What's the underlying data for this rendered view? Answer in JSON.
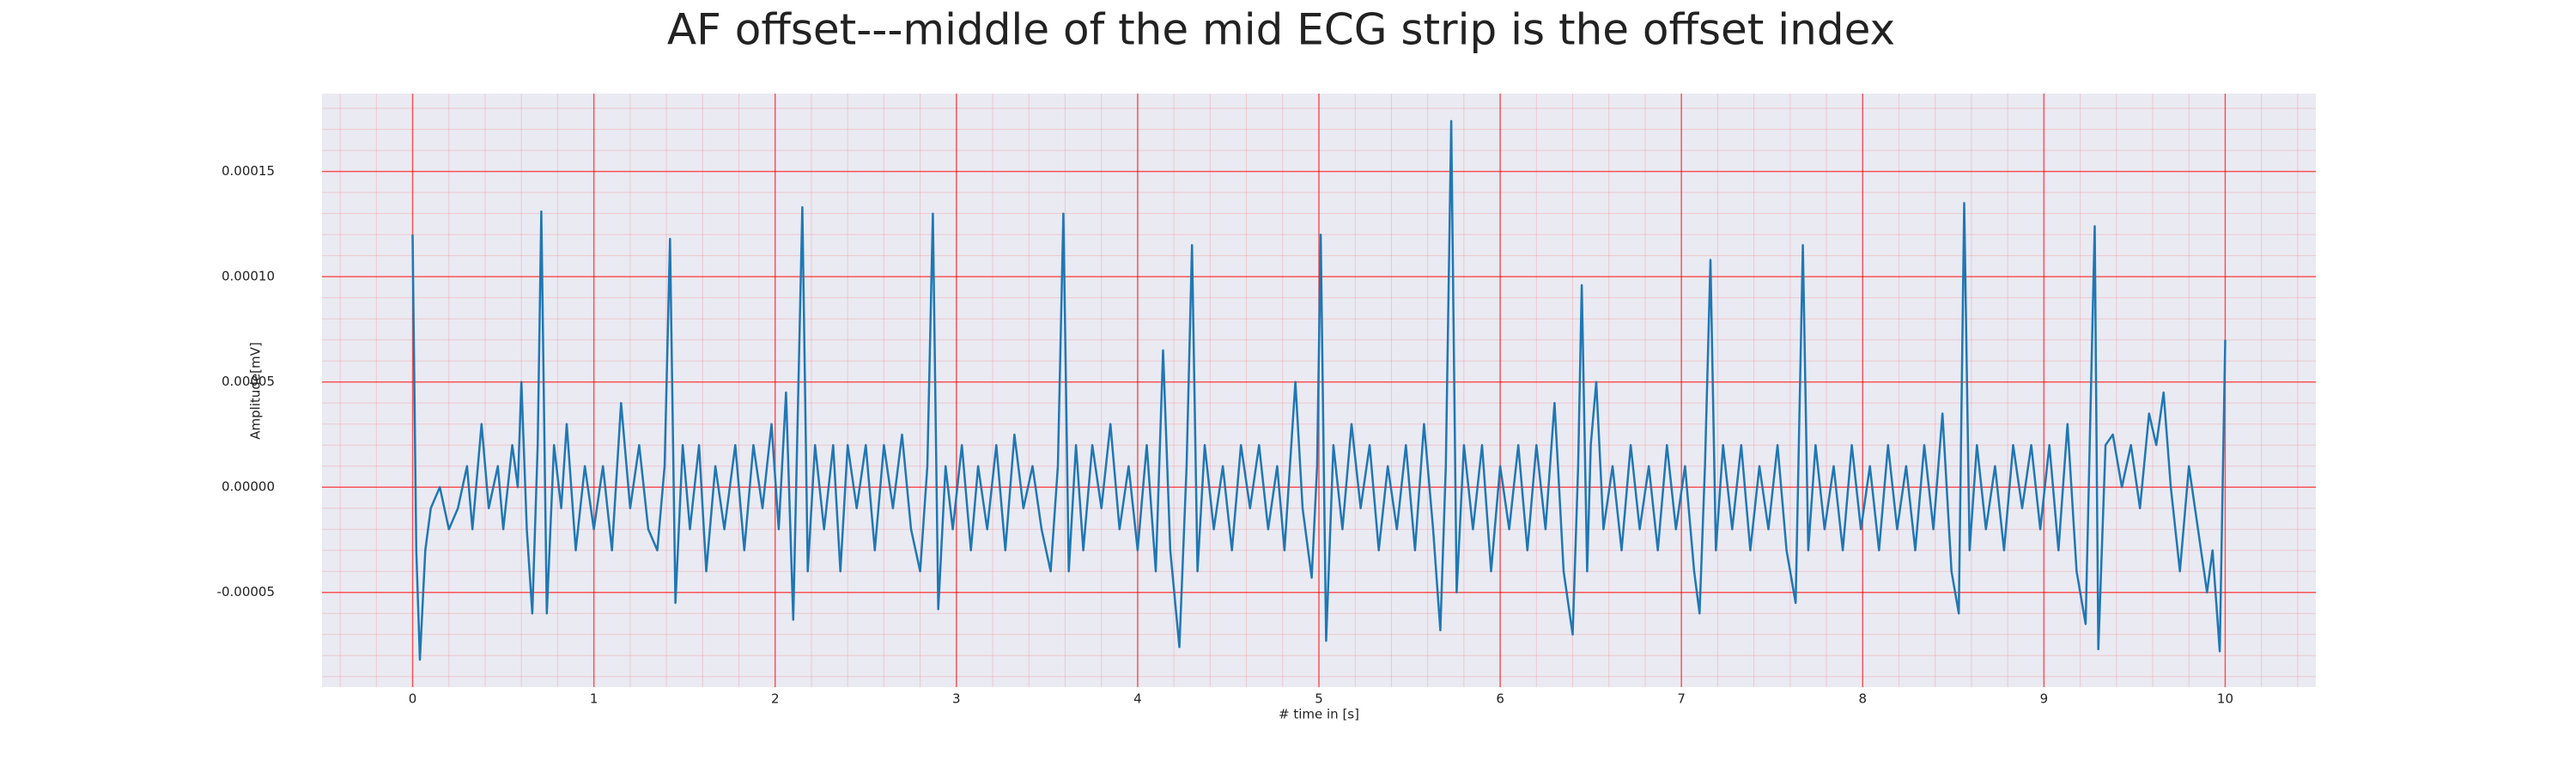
{
  "chart_data": {
    "type": "line",
    "title": "AF offset---middle of the mid ECG strip is the offset index",
    "xlabel": "# time in [s]",
    "ylabel": "Amplitude[mV]",
    "xlim": [
      -0.5,
      10.5
    ],
    "ylim": [
      -9.5e-05,
      0.000187
    ],
    "xticks": [
      0,
      1,
      2,
      3,
      4,
      5,
      6,
      7,
      8,
      9,
      10
    ],
    "yticks": [
      {
        "value": -5e-05,
        "label": "-0.00005"
      },
      {
        "value": 0,
        "label": "0.00000"
      },
      {
        "value": 5e-05,
        "label": "0.00005"
      },
      {
        "value": 0.0001,
        "label": "0.00010"
      },
      {
        "value": 0.00015,
        "label": "0.00015"
      }
    ],
    "grid": true,
    "minor_grid": true,
    "grid_color": "#ff0000",
    "background": "#eaeaf2",
    "series": [
      {
        "color": "#1f77b4",
        "x": [
          0,
          0.02,
          0.04,
          0.07,
          0.1,
          0.15,
          0.2,
          0.25,
          0.3,
          0.33,
          0.38,
          0.42,
          0.47,
          0.5,
          0.55,
          0.58,
          0.6,
          0.63,
          0.66,
          0.69,
          0.71,
          0.74,
          0.78,
          0.82,
          0.85,
          0.9,
          0.95,
          1.0,
          1.05,
          1.1,
          1.15,
          1.2,
          1.25,
          1.3,
          1.35,
          1.39,
          1.42,
          1.45,
          1.49,
          1.53,
          1.58,
          1.62,
          1.67,
          1.72,
          1.78,
          1.83,
          1.88,
          1.93,
          1.98,
          2.02,
          2.06,
          2.1,
          2.15,
          2.18,
          2.22,
          2.27,
          2.32,
          2.36,
          2.4,
          2.45,
          2.5,
          2.55,
          2.6,
          2.65,
          2.7,
          2.75,
          2.8,
          2.84,
          2.87,
          2.9,
          2.94,
          2.98,
          3.03,
          3.08,
          3.12,
          3.17,
          3.22,
          3.27,
          3.32,
          3.37,
          3.42,
          3.47,
          3.52,
          3.56,
          3.59,
          3.62,
          3.66,
          3.7,
          3.75,
          3.8,
          3.85,
          3.9,
          3.95,
          4.0,
          4.05,
          4.1,
          4.14,
          4.18,
          4.23,
          4.27,
          4.3,
          4.33,
          4.37,
          4.42,
          4.47,
          4.52,
          4.57,
          4.62,
          4.67,
          4.72,
          4.77,
          4.81,
          4.87,
          4.91,
          4.96,
          4.99,
          5.01,
          5.04,
          5.08,
          5.13,
          5.18,
          5.23,
          5.28,
          5.33,
          5.38,
          5.43,
          5.48,
          5.53,
          5.58,
          5.63,
          5.67,
          5.7,
          5.73,
          5.76,
          5.8,
          5.85,
          5.9,
          5.95,
          6.0,
          6.05,
          6.1,
          6.15,
          6.2,
          6.25,
          6.3,
          6.35,
          6.4,
          6.43,
          6.45,
          6.48,
          6.5,
          6.53,
          6.57,
          6.62,
          6.67,
          6.72,
          6.77,
          6.82,
          6.87,
          6.92,
          6.97,
          7.02,
          7.07,
          7.1,
          7.13,
          7.16,
          7.19,
          7.23,
          7.28,
          7.33,
          7.38,
          7.43,
          7.48,
          7.53,
          7.58,
          7.63,
          7.67,
          7.7,
          7.74,
          7.79,
          7.84,
          7.89,
          7.94,
          7.99,
          8.04,
          8.09,
          8.14,
          8.19,
          8.24,
          8.29,
          8.34,
          8.39,
          8.44,
          8.49,
          8.53,
          8.56,
          8.59,
          8.63,
          8.68,
          8.73,
          8.78,
          8.83,
          8.88,
          8.93,
          8.98,
          9.03,
          9.08,
          9.13,
          9.18,
          9.23,
          9.25,
          9.28,
          9.3,
          9.34,
          9.38,
          9.43,
          9.48,
          9.53,
          9.58,
          9.62,
          9.66,
          9.7,
          9.75,
          9.8,
          9.85,
          9.9,
          9.93,
          9.97,
          10.0
        ],
        "values": [
          0.00012,
          -3e-05,
          -8.2e-05,
          -3e-05,
          -1e-05,
          0,
          -2e-05,
          -1e-05,
          1e-05,
          -2e-05,
          3e-05,
          -1e-05,
          1e-05,
          -2e-05,
          2e-05,
          0,
          5e-05,
          -2e-05,
          -6e-05,
          2e-05,
          0.000131,
          -6e-05,
          2e-05,
          -1e-05,
          3e-05,
          -3e-05,
          1e-05,
          -2e-05,
          1e-05,
          -3e-05,
          4e-05,
          -1e-05,
          2e-05,
          -2e-05,
          -3e-05,
          1e-05,
          0.000118,
          -5.5e-05,
          2e-05,
          -2e-05,
          2e-05,
          -4e-05,
          1e-05,
          -2e-05,
          2e-05,
          -3e-05,
          2e-05,
          -1e-05,
          3e-05,
          -2e-05,
          4.5e-05,
          -6.3e-05,
          0.000133,
          -4e-05,
          2e-05,
          -2e-05,
          2e-05,
          -4e-05,
          2e-05,
          -1e-05,
          2e-05,
          -3e-05,
          2e-05,
          -1e-05,
          2.5e-05,
          -2e-05,
          -4e-05,
          1e-05,
          0.00013,
          -5.8e-05,
          1e-05,
          -2e-05,
          2e-05,
          -3e-05,
          1e-05,
          -2e-05,
          2e-05,
          -3e-05,
          2.5e-05,
          -1e-05,
          1e-05,
          -2e-05,
          -4e-05,
          1e-05,
          0.00013,
          -4e-05,
          2e-05,
          -3e-05,
          2e-05,
          -1e-05,
          3e-05,
          -2e-05,
          1e-05,
          -3e-05,
          2e-05,
          -4e-05,
          6.5e-05,
          -3e-05,
          -7.6e-05,
          1e-05,
          0.000115,
          -4e-05,
          2e-05,
          -2e-05,
          1e-05,
          -3e-05,
          2e-05,
          -1e-05,
          2e-05,
          -2e-05,
          1e-05,
          -3e-05,
          5e-05,
          -1e-05,
          -4.3e-05,
          1e-05,
          0.00012,
          -7.3e-05,
          2e-05,
          -2e-05,
          3e-05,
          -1e-05,
          2e-05,
          -3e-05,
          1e-05,
          -2e-05,
          2e-05,
          -3e-05,
          3e-05,
          -2e-05,
          -6.8e-05,
          1e-05,
          0.000174,
          -5e-05,
          2e-05,
          -2e-05,
          2e-05,
          -4e-05,
          1e-05,
          -2e-05,
          2e-05,
          -3e-05,
          2e-05,
          -2e-05,
          4e-05,
          -4e-05,
          -7e-05,
          1e-05,
          9.6e-05,
          -4e-05,
          2e-05,
          5e-05,
          -2e-05,
          1e-05,
          -3e-05,
          2e-05,
          -2e-05,
          1e-05,
          -3e-05,
          2e-05,
          -2e-05,
          1e-05,
          -4e-05,
          -6e-05,
          1e-05,
          0.000108,
          -3e-05,
          2e-05,
          -2e-05,
          2e-05,
          -3e-05,
          1e-05,
          -2e-05,
          2e-05,
          -3e-05,
          -5.5e-05,
          0.000115,
          -3e-05,
          2e-05,
          -2e-05,
          1e-05,
          -3e-05,
          2e-05,
          -2e-05,
          1e-05,
          -3e-05,
          2e-05,
          -2e-05,
          1e-05,
          -3e-05,
          2e-05,
          -2e-05,
          3.5e-05,
          -4e-05,
          -6e-05,
          0.000135,
          -3e-05,
          2e-05,
          -2e-05,
          1e-05,
          -3e-05,
          2e-05,
          -1e-05,
          2e-05,
          -2e-05,
          2e-05,
          -3e-05,
          3e-05,
          -4e-05,
          -6.5e-05,
          1e-05,
          0.000124,
          -7.7e-05,
          2e-05,
          2.5e-05,
          0,
          2e-05,
          -1e-05,
          3.5e-05,
          2e-05,
          4.5e-05,
          0,
          -4e-05,
          1e-05,
          -2e-05,
          -5e-05,
          -3e-05,
          -7.8e-05,
          7e-05
        ]
      }
    ]
  }
}
